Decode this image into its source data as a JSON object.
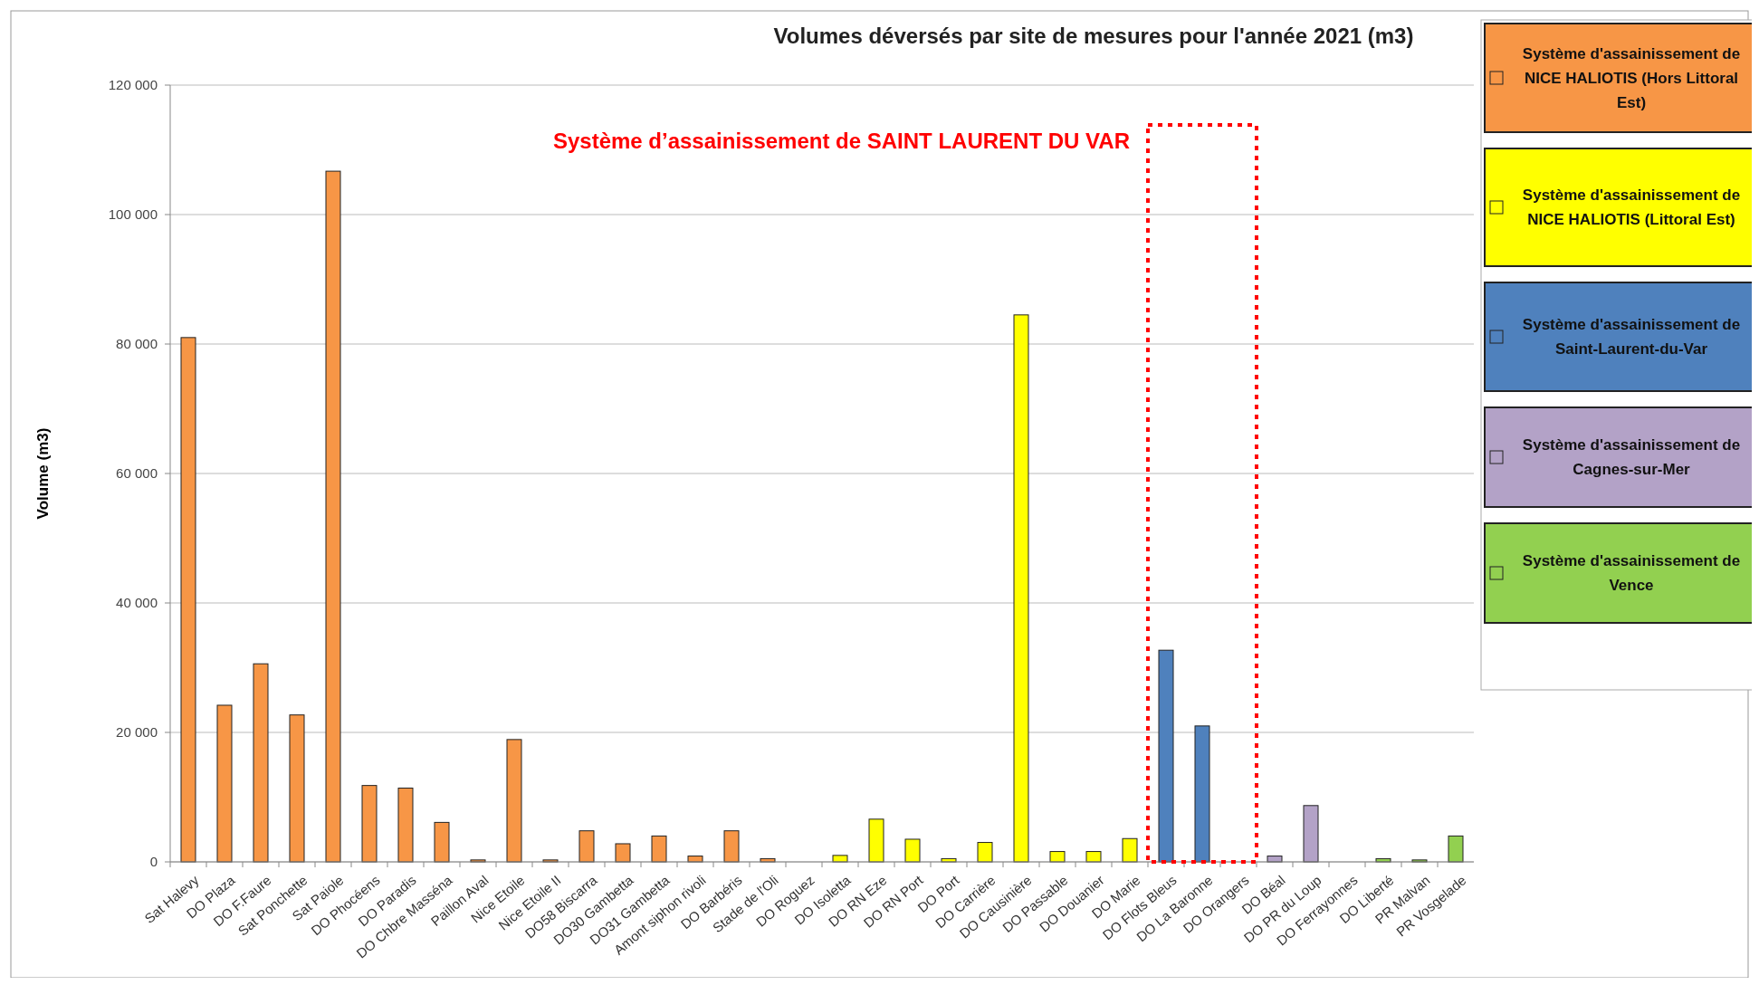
{
  "chart_data": {
    "type": "bar",
    "title": "Volumes déversés par site de mesures pour l'année 2021 (m3)",
    "ylabel": "Volume (m3)",
    "categories": [
      "Sat Halevy",
      "DO Plaza",
      "DO F.Faure",
      "Sat Ponchette",
      "Sat Paiole",
      "DO Phocéens",
      "DO Paradis",
      "DO Chbre Masséna",
      "Paillon Aval",
      "Nice Etoile",
      "Nice Etoile II",
      "DO58 Biscarra",
      "DO30 Gambetta",
      "DO31 Gambetta",
      "Amont siphon rivoli",
      "DO Barbéris",
      "Stade de l'Oli",
      "DO Roguez",
      "DO Isoletta",
      "DO RN Eze",
      "DO RN Port",
      "DO Port",
      "DO Carrière",
      "DO Causinière",
      "DO Passable",
      "DO Douanier",
      "DO Marie",
      "DO Flots Bleus",
      "DO La Baronne",
      "DO Orangers",
      "DO Béal",
      "DO PR du Loup",
      "DO Ferrayonnes",
      "DO Liberté",
      "PR Malvan",
      "PR Vosgelade"
    ],
    "series": [
      {
        "name": "Système d'assainissement  de NICE HALIOTIS (Hors Littoral Est)",
        "color": "#f79646",
        "values": [
          81000,
          24200,
          30600,
          22700,
          106700,
          11800,
          11400,
          6100,
          300,
          18900,
          300,
          4800,
          2800,
          4000,
          900,
          4800,
          500,
          null,
          null,
          null,
          null,
          null,
          null,
          null,
          null,
          null,
          null,
          null,
          null,
          null,
          null,
          null,
          null,
          null,
          null,
          null
        ]
      },
      {
        "name": "Système d'assainissement  de NICE HALIOTIS (Littoral Est)",
        "color": "#ffff00",
        "values": [
          null,
          null,
          null,
          null,
          null,
          null,
          null,
          null,
          null,
          null,
          null,
          null,
          null,
          null,
          null,
          null,
          null,
          0,
          1000,
          6600,
          3500,
          500,
          3000,
          84500,
          1600,
          1600,
          3600,
          null,
          null,
          null,
          null,
          null,
          null,
          null,
          null,
          null
        ]
      },
      {
        "name": "Système d'assainissement  de Saint-Laurent-du-Var",
        "color": "#4f81bd",
        "values": [
          null,
          null,
          null,
          null,
          null,
          null,
          null,
          null,
          null,
          null,
          null,
          null,
          null,
          null,
          null,
          null,
          null,
          null,
          null,
          null,
          null,
          null,
          null,
          null,
          null,
          null,
          null,
          32700,
          21000,
          0,
          null,
          null,
          null,
          null,
          null,
          null
        ]
      },
      {
        "name": "Système d'assainissement  de Cagnes-sur-Mer",
        "color": "#b3a2c7",
        "values": [
          null,
          null,
          null,
          null,
          null,
          null,
          null,
          null,
          null,
          null,
          null,
          null,
          null,
          null,
          null,
          null,
          null,
          null,
          null,
          null,
          null,
          null,
          null,
          null,
          null,
          null,
          null,
          null,
          null,
          null,
          900,
          8700,
          0,
          null,
          null,
          null
        ]
      },
      {
        "name": "Système d'assainissement  de Vence",
        "color": "#92d050",
        "values": [
          null,
          null,
          null,
          null,
          null,
          null,
          null,
          null,
          null,
          null,
          null,
          null,
          null,
          null,
          null,
          null,
          null,
          null,
          null,
          null,
          null,
          null,
          null,
          null,
          null,
          null,
          null,
          null,
          null,
          null,
          null,
          null,
          null,
          500,
          300,
          4000
        ]
      }
    ],
    "ylim": [
      0,
      120000
    ],
    "yticks": [
      {
        "value": 0,
        "label": "0"
      },
      {
        "value": 20000,
        "label": "20 000"
      },
      {
        "value": 40000,
        "label": "40 000"
      },
      {
        "value": 60000,
        "label": "60 000"
      },
      {
        "value": 80000,
        "label": "80 000"
      },
      {
        "value": 100000,
        "label": "100 000"
      },
      {
        "value": 120000,
        "label": "120 000"
      }
    ],
    "grid": "y",
    "legend": "right",
    "annotations": [
      "Système d’assainissement de SAINT LAURENT DU VAR"
    ]
  }
}
